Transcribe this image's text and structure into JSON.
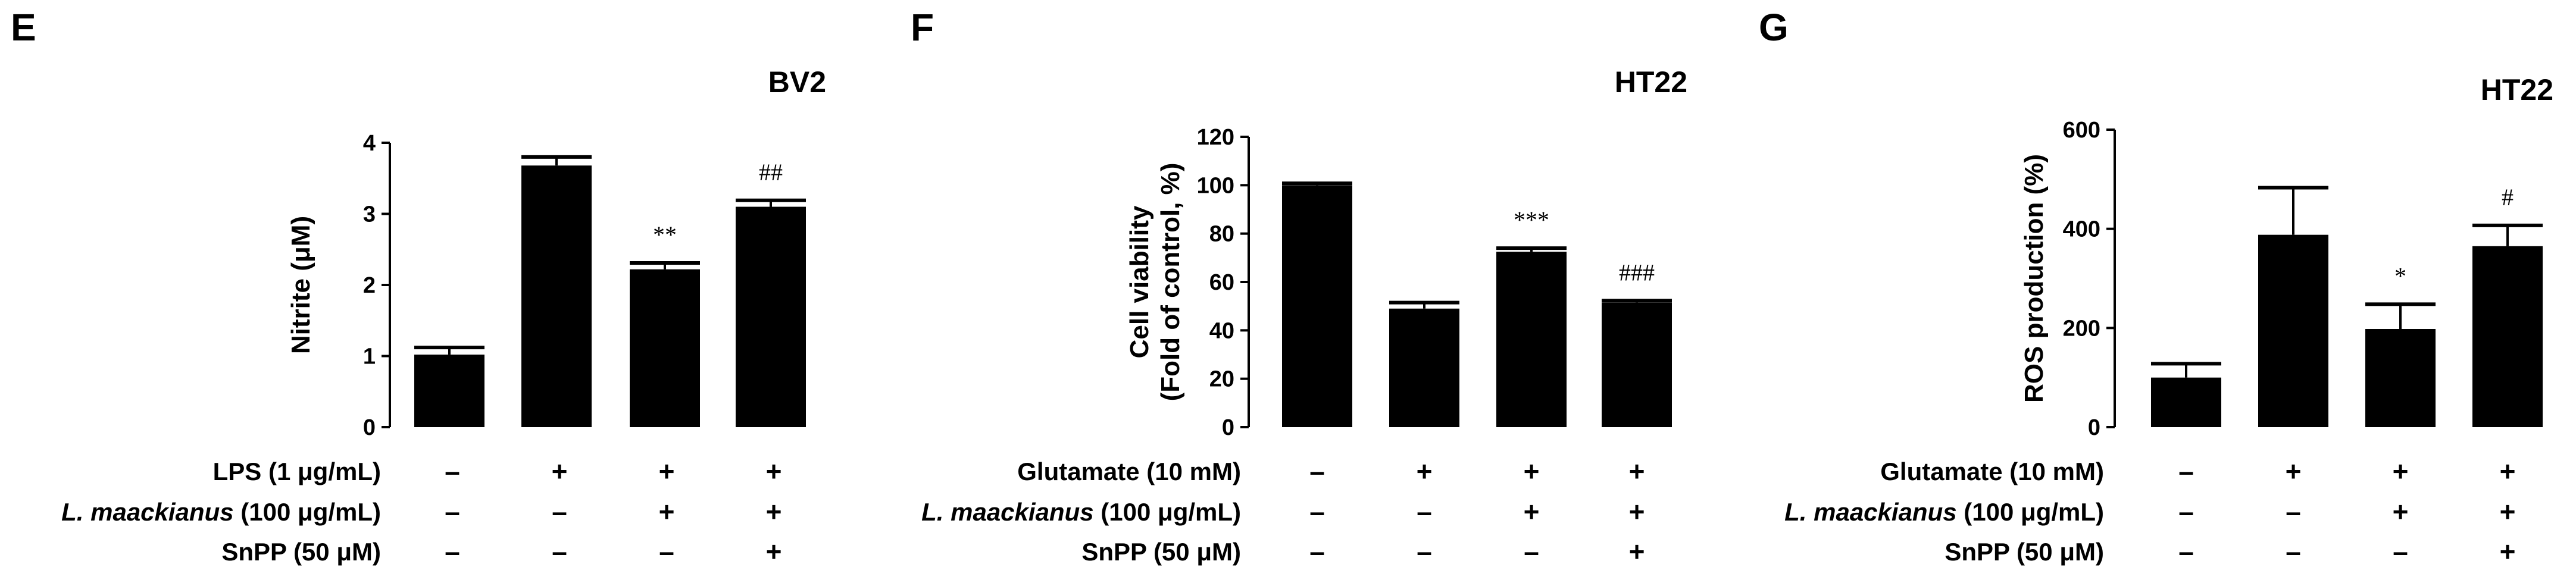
{
  "chart_data": [
    {
      "panel": "E",
      "type": "bar",
      "title": "BV2",
      "ylabel": "Nitrite (μM)",
      "ylim": [
        0,
        4
      ],
      "yticks": [
        0,
        1,
        2,
        3,
        4
      ],
      "values": [
        1.02,
        3.68,
        2.22,
        3.1
      ],
      "errors": [
        0.1,
        0.12,
        0.09,
        0.09
      ],
      "significance": [
        "",
        "",
        "**",
        "##"
      ],
      "treatments": [
        {
          "label": "LPS (1 μg/mL)",
          "signs": [
            "–",
            "+",
            "+",
            "+"
          ]
        },
        {
          "label_italic": "L. maackianus",
          "label_rest": " (100 μg/mL)",
          "signs": [
            "–",
            "–",
            "+",
            "+"
          ]
        },
        {
          "label": "SnPP (50 μM)",
          "signs": [
            "–",
            "–",
            "–",
            "+"
          ]
        }
      ]
    },
    {
      "panel": "F",
      "type": "bar",
      "title": "HT22",
      "ylabel": "Cell viability",
      "ylabel2": "(Fold of control, %)",
      "ylim": [
        0,
        120
      ],
      "yticks": [
        0,
        20,
        40,
        60,
        80,
        100,
        120
      ],
      "values": [
        100,
        49,
        72.5,
        51.5
      ],
      "errors": [
        0.8,
        2.5,
        1.5,
        0.8
      ],
      "significance": [
        "",
        "",
        "***",
        "###"
      ],
      "treatments": [
        {
          "label": "Glutamate (10 mM)",
          "signs": [
            "–",
            "+",
            "+",
            "+"
          ]
        },
        {
          "label_italic": "L. maackianus",
          "label_rest": " (100 μg/mL)",
          "signs": [
            "–",
            "–",
            "+",
            "+"
          ]
        },
        {
          "label": "SnPP (50 μM)",
          "signs": [
            "–",
            "–",
            "–",
            "+"
          ]
        }
      ]
    },
    {
      "panel": "G",
      "type": "bar",
      "title": "HT22",
      "ylabel": "ROS production (%)",
      "ylim": [
        0,
        600
      ],
      "yticks": [
        0,
        200,
        400,
        600
      ],
      "values": [
        100,
        388,
        198,
        365
      ],
      "errors": [
        28,
        95,
        50,
        42
      ],
      "significance": [
        "",
        "",
        "*",
        "#"
      ],
      "treatments": [
        {
          "label": "Glutamate (10 mM)",
          "signs": [
            "–",
            "+",
            "+",
            "+"
          ]
        },
        {
          "label_italic": "L. maackianus",
          "label_rest": " (100 μg/mL)",
          "signs": [
            "–",
            "–",
            "+",
            "+"
          ]
        },
        {
          "label": "SnPP (50 μM)",
          "signs": [
            "–",
            "–",
            "–",
            "+"
          ]
        }
      ]
    }
  ]
}
